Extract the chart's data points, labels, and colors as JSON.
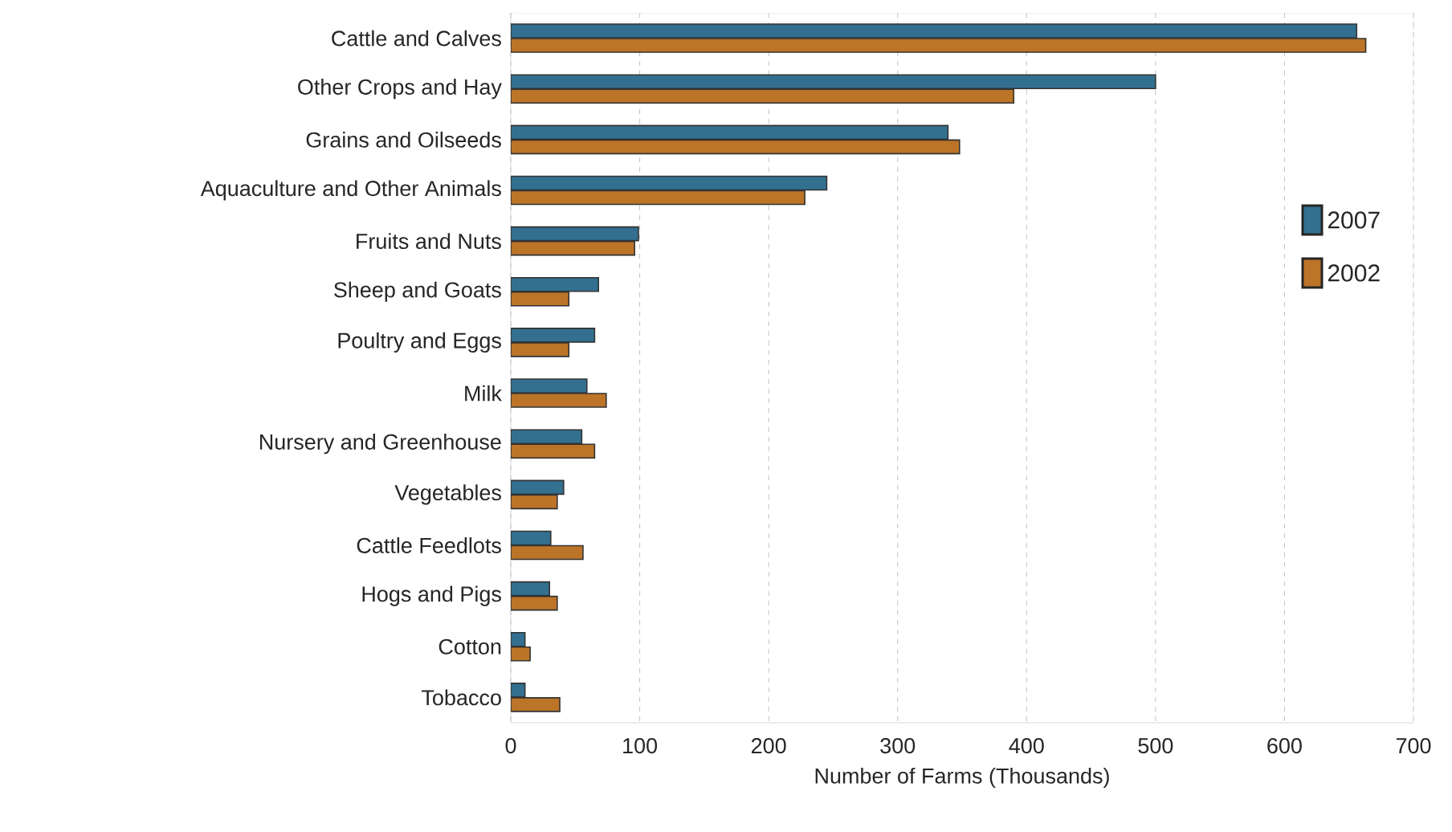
{
  "chart_data": {
    "type": "bar",
    "orientation": "horizontal",
    "xlabel": "Number of Farms (Thousands)",
    "categories": [
      "Cattle and Calves",
      "Other Crops and Hay",
      "Grains and Oilseeds",
      "Aquaculture and Other Animals",
      "Fruits and Nuts",
      "Sheep and Goats",
      "Poultry and Eggs",
      "Milk",
      "Nursery and Greenhouse",
      "Vegetables",
      "Cattle Feedlots",
      "Hogs and Pigs",
      "Cotton",
      "Tobacco"
    ],
    "series": [
      {
        "name": "2007",
        "color": "#33708f",
        "values": [
          656,
          500,
          339,
          245,
          99,
          68,
          65,
          59,
          55,
          41,
          31,
          30,
          11,
          11
        ]
      },
      {
        "name": "2002",
        "color": "#bc7428",
        "values": [
          663,
          390,
          348,
          228,
          96,
          45,
          45,
          74,
          65,
          36,
          56,
          36,
          15,
          38
        ]
      }
    ],
    "xlim": [
      0,
      700
    ],
    "xticks": [
      0,
      100,
      200,
      300,
      400,
      500,
      600,
      700
    ],
    "grid": "x",
    "legend": "right"
  }
}
